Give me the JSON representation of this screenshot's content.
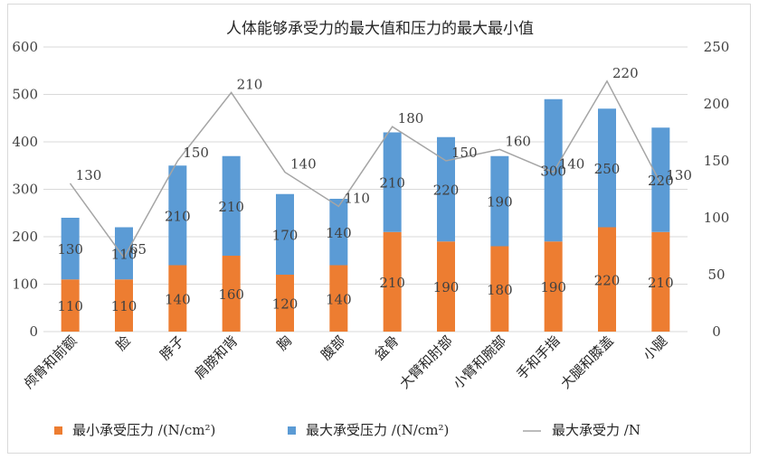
{
  "chart_data": {
    "type": "bar",
    "title": "人体能够承受力的最大值和压力的最大最小值",
    "categories": [
      "颅骨和前额",
      "脸",
      "脖子",
      "肩膀和背",
      "胸",
      "腹部",
      "盆骨",
      "大臂和肘部",
      "小臂和腕部",
      "手和手指",
      "大腿和膝盖",
      "小腿"
    ],
    "series": [
      {
        "name": "最小承受压力 /(N/cm²)",
        "kind": "stacked-bar",
        "color": "#ED7D31",
        "values": [
          110,
          110,
          140,
          160,
          120,
          140,
          210,
          190,
          180,
          190,
          220,
          210
        ]
      },
      {
        "name": "最大承受压力 /(N/cm²)",
        "kind": "stacked-bar",
        "color": "#5B9BD5",
        "values": [
          130,
          110,
          210,
          210,
          170,
          140,
          210,
          220,
          190,
          300,
          250,
          220
        ]
      },
      {
        "name": "最大承受力 /N",
        "kind": "line",
        "axis": "right",
        "color": "#A5A5A5",
        "values": [
          130,
          65,
          150,
          210,
          140,
          110,
          180,
          150,
          160,
          140,
          220,
          130
        ]
      }
    ],
    "left_axis": {
      "min": 0,
      "max": 600,
      "ticks": [
        "0",
        "100",
        "200",
        "300",
        "400",
        "500",
        "600"
      ]
    },
    "right_axis": {
      "min": 0,
      "max": 250,
      "ticks": [
        "0",
        "50",
        "100",
        "150",
        "200",
        "250"
      ]
    },
    "grid": true,
    "legend_position": "bottom"
  }
}
